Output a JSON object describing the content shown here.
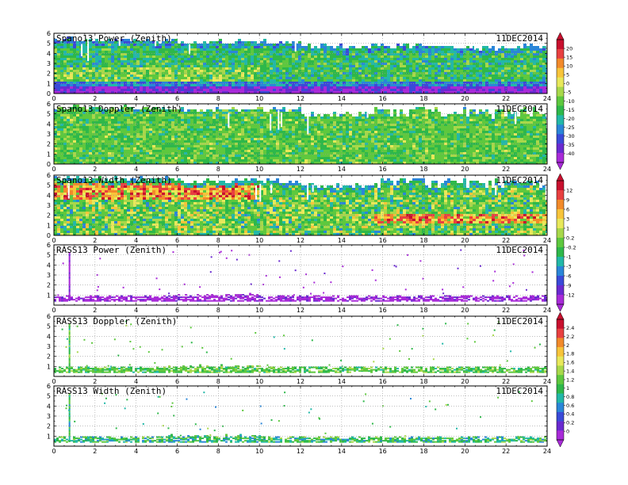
{
  "chart_data": [
    {
      "type": "heatmap",
      "title": "Spano13 Power (Zenith)",
      "date": "11DEC2014",
      "xlim": [
        0,
        24
      ],
      "ylim": [
        0,
        6
      ],
      "xticks": [
        "0",
        "2",
        "4",
        "6",
        "8",
        "10",
        "12",
        "14",
        "16",
        "18",
        "20",
        "22",
        "24"
      ],
      "yticks": [
        "0",
        "1",
        "2",
        "3",
        "4",
        "5",
        "6"
      ],
      "fill_top": [
        5.2,
        5.0,
        4.6,
        4.5
      ],
      "colorbar": "A",
      "pattern": "power"
    },
    {
      "type": "heatmap",
      "title": "Spano13 Doppler (Zenith)",
      "date": "11DEC2014",
      "xlim": [
        0,
        24
      ],
      "ylim": [
        0,
        6
      ],
      "xticks": [
        "0",
        "2",
        "4",
        "6",
        "8",
        "10",
        "12",
        "14",
        "16",
        "18",
        "20",
        "22",
        "24"
      ],
      "yticks": [
        "0",
        "1",
        "2",
        "3",
        "4",
        "5",
        "6"
      ],
      "fill_top": [
        5.5,
        5.3,
        4.8,
        4.7
      ],
      "colorbar": "A",
      "pattern": "doppler"
    },
    {
      "type": "heatmap",
      "title": "Spano13 Width (Zenith)",
      "date": "11DEC2014",
      "xlim": [
        0,
        24
      ],
      "ylim": [
        0,
        6
      ],
      "xticks": [
        "0",
        "2",
        "4",
        "6",
        "8",
        "10",
        "12",
        "14",
        "16",
        "18",
        "20",
        "22",
        "24"
      ],
      "yticks": [
        "0",
        "1",
        "2",
        "3",
        "4",
        "5",
        "6"
      ],
      "fill_top": [
        5.5,
        5.3,
        4.8,
        4.7
      ],
      "colorbar": "B",
      "pattern": "width"
    },
    {
      "type": "heatmap",
      "title": "RASS13 Power (Zenith)",
      "date": "11DEC2014",
      "xlim": [
        0,
        24
      ],
      "ylim": [
        0,
        6
      ],
      "xticks": [
        "0",
        "2",
        "4",
        "6",
        "8",
        "10",
        "12",
        "14",
        "16",
        "18",
        "20",
        "22",
        "24"
      ],
      "yticks": [
        "1",
        "2",
        "3",
        "4",
        "5",
        "6"
      ],
      "colorbar": "B",
      "pattern": "rasspower"
    },
    {
      "type": "heatmap",
      "title": "RASS13 Doppler (Zenith)",
      "date": "11DEC2014",
      "xlim": [
        0,
        24
      ],
      "ylim": [
        0,
        6
      ],
      "xticks": [
        "0",
        "2",
        "4",
        "6",
        "8",
        "10",
        "12",
        "14",
        "16",
        "18",
        "20",
        "22",
        "24"
      ],
      "yticks": [
        "1",
        "2",
        "3",
        "4",
        "5",
        "6"
      ],
      "colorbar": "C",
      "pattern": "rassdoppler"
    },
    {
      "type": "heatmap",
      "title": "RASS13 Width (Zenith)",
      "date": "11DEC2014",
      "xlim": [
        0,
        24
      ],
      "ylim": [
        0,
        6
      ],
      "xticks": [
        "0",
        "2",
        "4",
        "6",
        "8",
        "10",
        "12",
        "14",
        "16",
        "18",
        "20",
        "22",
        "24"
      ],
      "yticks": [
        "1",
        "2",
        "3",
        "4",
        "5",
        "6"
      ],
      "colorbar": "C",
      "pattern": "rasswidth"
    }
  ],
  "colorbars": {
    "A": {
      "labels": [
        "20",
        "15",
        "10",
        "5",
        "0",
        "-5",
        "-10",
        "-15",
        "-20",
        "-25",
        "-30",
        "-35",
        "-40"
      ],
      "colors": [
        "#c8102e",
        "#e84040",
        "#f28a2a",
        "#f7c43a",
        "#e8e85a",
        "#a8d84a",
        "#5ec83e",
        "#2eb84a",
        "#22b8a8",
        "#2a86d8",
        "#3a4ad8",
        "#6a2ad0",
        "#a82ad8"
      ]
    },
    "B": {
      "labels": [
        "12",
        "9",
        "6",
        "3",
        "1",
        "0.2",
        "-0.2",
        "-1",
        "-3",
        "-6",
        "-9",
        "-12"
      ],
      "colors": [
        "#c8102e",
        "#e84040",
        "#f28a2a",
        "#f7c43a",
        "#e8e85a",
        "#a8d84a",
        "#5ec83e",
        "#2eb84a",
        "#22b8a8",
        "#2a86d8",
        "#3a4ad8",
        "#6a2ad0",
        "#a82ad8"
      ]
    },
    "C": {
      "labels": [
        "2.4",
        "2.2",
        "2",
        "1.8",
        "1.6",
        "1.4",
        "1.2",
        "1",
        "0.8",
        "0.6",
        "0.4",
        "0.2",
        "0"
      ],
      "colors": [
        "#c8102e",
        "#e84040",
        "#f28a2a",
        "#f7c43a",
        "#e8e85a",
        "#a8d84a",
        "#5ec83e",
        "#2eb84a",
        "#22b8a8",
        "#2a86d8",
        "#3a4ad8",
        "#6a2ad0",
        "#a82ad8"
      ]
    }
  }
}
